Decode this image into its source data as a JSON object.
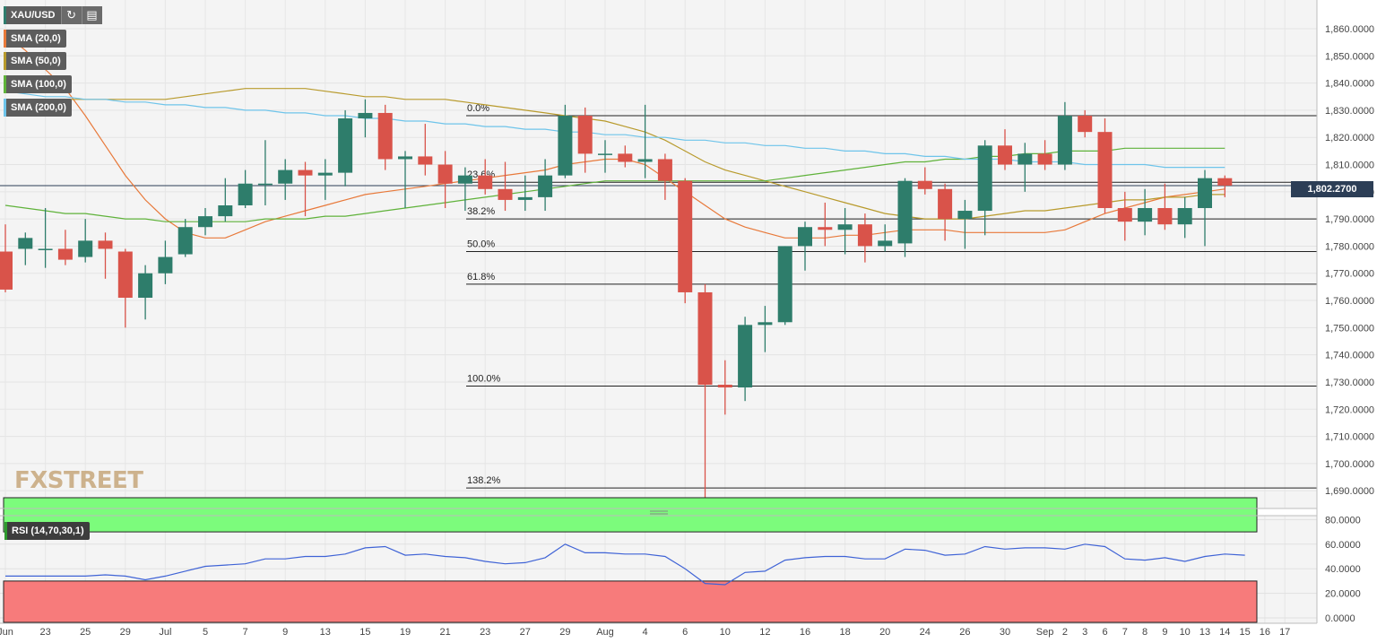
{
  "toolbar": {
    "symbol": "XAU/USD",
    "refresh_icon": "refresh-icon",
    "settings_icon": "chart-settings-icon"
  },
  "indicators": [
    {
      "label": "SMA (20,0)",
      "color": "#e8793a"
    },
    {
      "label": "SMA (50,0)",
      "color": "#b89a2c"
    },
    {
      "label": "SMA (100,0)",
      "color": "#5fb23a"
    },
    {
      "label": "SMA (200,0)",
      "color": "#6ec4ea"
    }
  ],
  "logo": "FXSTREET",
  "rsi_label": "RSI (14,70,30,1)",
  "last_price_label": "1,802.2700",
  "chart_data": {
    "type": "candlestick",
    "title": "XAU/USD",
    "ylim": [
      1687,
      1866
    ],
    "y_ticks": [
      "1,860.0000",
      "1,850.0000",
      "1,840.0000",
      "1,830.0000",
      "1,820.0000",
      "1,810.0000",
      "1,800.0000",
      "1,790.0000",
      "1,780.0000",
      "1,770.0000",
      "1,760.0000",
      "1,750.0000",
      "1,740.0000",
      "1,730.0000",
      "1,720.0000",
      "1,710.0000",
      "1,700.0000",
      "1,690.0000"
    ],
    "y_tick_values": [
      1860,
      1850,
      1840,
      1830,
      1820,
      1810,
      1800,
      1790,
      1780,
      1770,
      1760,
      1750,
      1740,
      1730,
      1720,
      1710,
      1700,
      1690
    ],
    "x_ticks": [
      {
        "label": "Jun",
        "i": 0
      },
      {
        "label": "23",
        "i": 2
      },
      {
        "label": "25",
        "i": 4
      },
      {
        "label": "29",
        "i": 6
      },
      {
        "label": "Jul",
        "i": 8
      },
      {
        "label": "5",
        "i": 10
      },
      {
        "label": "7",
        "i": 12
      },
      {
        "label": "9",
        "i": 14
      },
      {
        "label": "13",
        "i": 16
      },
      {
        "label": "15",
        "i": 18
      },
      {
        "label": "19",
        "i": 20
      },
      {
        "label": "21",
        "i": 22
      },
      {
        "label": "23",
        "i": 24
      },
      {
        "label": "27",
        "i": 26
      },
      {
        "label": "29",
        "i": 28
      },
      {
        "label": "Aug",
        "i": 30
      },
      {
        "label": "4",
        "i": 32
      },
      {
        "label": "6",
        "i": 34
      },
      {
        "label": "10",
        "i": 36
      },
      {
        "label": "12",
        "i": 38
      },
      {
        "label": "16",
        "i": 40
      },
      {
        "label": "18",
        "i": 42
      },
      {
        "label": "20",
        "i": 44
      },
      {
        "label": "24",
        "i": 46
      },
      {
        "label": "26",
        "i": 48
      },
      {
        "label": "30",
        "i": 50
      },
      {
        "label": "Sep",
        "i": 52
      },
      {
        "label": "2",
        "i": 53
      },
      {
        "label": "3",
        "i": 54
      },
      {
        "label": "6",
        "i": 55
      },
      {
        "label": "7",
        "i": 56
      },
      {
        "label": "8",
        "i": 57
      },
      {
        "label": "9",
        "i": 58
      },
      {
        "label": "10",
        "i": 59
      },
      {
        "label": "13",
        "i": 60
      },
      {
        "label": "14",
        "i": 61
      },
      {
        "label": "15",
        "i": 62
      },
      {
        "label": "16",
        "i": 63
      },
      {
        "label": "17",
        "i": 64
      }
    ],
    "candles": [
      {
        "o": 1778,
        "h": 1788,
        "l": 1763,
        "c": 1764
      },
      {
        "o": 1779,
        "h": 1785,
        "l": 1773,
        "c": 1783
      },
      {
        "o": 1779,
        "h": 1794,
        "l": 1772,
        "c": 1779
      },
      {
        "o": 1779,
        "h": 1786,
        "l": 1773,
        "c": 1775
      },
      {
        "o": 1776,
        "h": 1790,
        "l": 1774,
        "c": 1782
      },
      {
        "o": 1782,
        "h": 1785,
        "l": 1768,
        "c": 1779
      },
      {
        "o": 1778,
        "h": 1779,
        "l": 1750,
        "c": 1761
      },
      {
        "o": 1761,
        "h": 1773,
        "l": 1753,
        "c": 1770
      },
      {
        "o": 1770,
        "h": 1782,
        "l": 1766,
        "c": 1776
      },
      {
        "o": 1777,
        "h": 1790,
        "l": 1776,
        "c": 1787
      },
      {
        "o": 1787,
        "h": 1794,
        "l": 1784,
        "c": 1791
      },
      {
        "o": 1791,
        "h": 1805,
        "l": 1789,
        "c": 1795
      },
      {
        "o": 1795,
        "h": 1808,
        "l": 1794,
        "c": 1803
      },
      {
        "o": 1803,
        "h": 1819,
        "l": 1795,
        "c": 1803
      },
      {
        "o": 1803,
        "h": 1812,
        "l": 1797,
        "c": 1808
      },
      {
        "o": 1808,
        "h": 1811,
        "l": 1791,
        "c": 1806
      },
      {
        "o": 1806,
        "h": 1812,
        "l": 1797,
        "c": 1807
      },
      {
        "o": 1807,
        "h": 1830,
        "l": 1802,
        "c": 1827
      },
      {
        "o": 1827,
        "h": 1834,
        "l": 1820,
        "c": 1829
      },
      {
        "o": 1829,
        "h": 1832,
        "l": 1808,
        "c": 1812
      },
      {
        "o": 1812,
        "h": 1815,
        "l": 1794,
        "c": 1813
      },
      {
        "o": 1813,
        "h": 1825,
        "l": 1806,
        "c": 1810
      },
      {
        "o": 1810,
        "h": 1815,
        "l": 1794,
        "c": 1803
      },
      {
        "o": 1803,
        "h": 1809,
        "l": 1793,
        "c": 1806
      },
      {
        "o": 1806,
        "h": 1812,
        "l": 1799,
        "c": 1801
      },
      {
        "o": 1801,
        "h": 1811,
        "l": 1793,
        "c": 1797
      },
      {
        "o": 1797,
        "h": 1806,
        "l": 1793,
        "c": 1798
      },
      {
        "o": 1798,
        "h": 1812,
        "l": 1793,
        "c": 1806
      },
      {
        "o": 1806,
        "h": 1832,
        "l": 1805,
        "c": 1828
      },
      {
        "o": 1828,
        "h": 1831,
        "l": 1807,
        "c": 1814
      },
      {
        "o": 1814,
        "h": 1819,
        "l": 1807,
        "c": 1814
      },
      {
        "o": 1814,
        "h": 1817,
        "l": 1809,
        "c": 1811
      },
      {
        "o": 1811,
        "h": 1832,
        "l": 1805,
        "c": 1812
      },
      {
        "o": 1812,
        "h": 1814,
        "l": 1797,
        "c": 1804
      },
      {
        "o": 1804,
        "h": 1805,
        "l": 1759,
        "c": 1763
      },
      {
        "o": 1763,
        "h": 1766,
        "l": 1687,
        "c": 1729
      },
      {
        "o": 1729,
        "h": 1738,
        "l": 1718,
        "c": 1728
      },
      {
        "o": 1728,
        "h": 1754,
        "l": 1723,
        "c": 1751
      },
      {
        "o": 1751,
        "h": 1758,
        "l": 1741,
        "c": 1752
      },
      {
        "o": 1752,
        "h": 1780,
        "l": 1751,
        "c": 1780
      },
      {
        "o": 1780,
        "h": 1789,
        "l": 1771,
        "c": 1787
      },
      {
        "o": 1787,
        "h": 1796,
        "l": 1780,
        "c": 1786
      },
      {
        "o": 1786,
        "h": 1794,
        "l": 1777,
        "c": 1788
      },
      {
        "o": 1788,
        "h": 1792,
        "l": 1774,
        "c": 1780
      },
      {
        "o": 1780,
        "h": 1788,
        "l": 1778,
        "c": 1782
      },
      {
        "o": 1781,
        "h": 1805,
        "l": 1776,
        "c": 1804
      },
      {
        "o": 1804,
        "h": 1809,
        "l": 1799,
        "c": 1801
      },
      {
        "o": 1801,
        "h": 1803,
        "l": 1782,
        "c": 1790
      },
      {
        "o": 1790,
        "h": 1797,
        "l": 1779,
        "c": 1793
      },
      {
        "o": 1793,
        "h": 1819,
        "l": 1784,
        "c": 1817
      },
      {
        "o": 1817,
        "h": 1823,
        "l": 1808,
        "c": 1810
      },
      {
        "o": 1810,
        "h": 1818,
        "l": 1800,
        "c": 1814
      },
      {
        "o": 1814,
        "h": 1819,
        "l": 1808,
        "c": 1810
      },
      {
        "o": 1810,
        "h": 1833,
        "l": 1808,
        "c": 1828
      },
      {
        "o": 1828,
        "h": 1830,
        "l": 1820,
        "c": 1822
      },
      {
        "o": 1822,
        "h": 1827,
        "l": 1792,
        "c": 1794
      },
      {
        "o": 1794,
        "h": 1800,
        "l": 1782,
        "c": 1789
      },
      {
        "o": 1789,
        "h": 1801,
        "l": 1784,
        "c": 1794
      },
      {
        "o": 1794,
        "h": 1803,
        "l": 1786,
        "c": 1788
      },
      {
        "o": 1788,
        "h": 1798,
        "l": 1783,
        "c": 1794
      },
      {
        "o": 1794,
        "h": 1808,
        "l": 1780,
        "c": 1805
      },
      {
        "o": 1805,
        "h": 1806,
        "l": 1798,
        "c": 1802.27
      }
    ],
    "sma": [
      {
        "label": "SMA (20,0)",
        "color": "#e8793a",
        "values": [
          1858,
          1852,
          1845,
          1838,
          1828,
          1817,
          1806,
          1797,
          1790,
          1785,
          1783,
          1783,
          1786,
          1789,
          1791,
          1793,
          1795,
          1797,
          1799,
          1800,
          1801,
          1802,
          1803,
          1804,
          1805,
          1806,
          1807,
          1808,
          1810,
          1811,
          1812,
          1812,
          1810,
          1805,
          1800,
          1795,
          1790,
          1787,
          1785,
          1783,
          1783,
          1783,
          1784,
          1784,
          1785,
          1786,
          1786,
          1786,
          1785,
          1785,
          1785,
          1785,
          1785,
          1786,
          1789,
          1792,
          1794,
          1796,
          1798,
          1799,
          1800,
          1801
        ]
      },
      {
        "label": "SMA (50,0)",
        "color": "#b89a2c",
        "values": [
          1834,
          1834,
          1834,
          1834,
          1834,
          1834,
          1834,
          1834,
          1834,
          1835,
          1836,
          1837,
          1838,
          1838,
          1838,
          1838,
          1837,
          1836,
          1835,
          1835,
          1834,
          1834,
          1834,
          1833,
          1832,
          1831,
          1830,
          1829,
          1828,
          1827,
          1826,
          1824,
          1822,
          1819,
          1815,
          1811,
          1808,
          1806,
          1804,
          1802,
          1800,
          1798,
          1796,
          1794,
          1792,
          1791,
          1790,
          1790,
          1790,
          1791,
          1792,
          1793,
          1793,
          1794,
          1795,
          1796,
          1797,
          1797,
          1798,
          1798,
          1799,
          1799
        ]
      },
      {
        "label": "SMA (100,0)",
        "color": "#5fb23a",
        "values": [
          1795,
          1794,
          1793,
          1792,
          1792,
          1791,
          1790,
          1790,
          1789,
          1789,
          1789,
          1789,
          1789,
          1790,
          1790,
          1790,
          1791,
          1791,
          1792,
          1793,
          1794,
          1795,
          1796,
          1797,
          1798,
          1799,
          1800,
          1801,
          1802,
          1803,
          1804,
          1804,
          1804,
          1804,
          1804,
          1804,
          1804,
          1804,
          1804,
          1805,
          1806,
          1807,
          1808,
          1809,
          1810,
          1811,
          1811,
          1812,
          1812,
          1813,
          1813,
          1814,
          1814,
          1815,
          1815,
          1815,
          1816,
          1816,
          1816,
          1816,
          1816,
          1816
        ]
      },
      {
        "label": "SMA (200,0)",
        "color": "#6ec4ea",
        "values": [
          1837,
          1836,
          1835,
          1835,
          1834,
          1834,
          1833,
          1833,
          1832,
          1832,
          1831,
          1831,
          1830,
          1830,
          1829,
          1829,
          1828,
          1828,
          1827,
          1827,
          1826,
          1826,
          1825,
          1825,
          1824,
          1824,
          1823,
          1823,
          1822,
          1822,
          1821,
          1821,
          1820,
          1820,
          1819,
          1819,
          1818,
          1818,
          1817,
          1817,
          1816,
          1816,
          1815,
          1815,
          1814,
          1814,
          1813,
          1813,
          1812,
          1812,
          1812,
          1811,
          1811,
          1811,
          1810,
          1810,
          1810,
          1810,
          1809,
          1809,
          1809,
          1809
        ]
      }
    ],
    "fib_levels": [
      {
        "label": "0.0%",
        "value": 1828
      },
      {
        "label": "23.6%",
        "value": 1803.5
      },
      {
        "label": "38.2%",
        "value": 1790
      },
      {
        "label": "50.0%",
        "value": 1778
      },
      {
        "label": "61.8%",
        "value": 1766
      },
      {
        "label": "100.0%",
        "value": 1728.5
      },
      {
        "label": "138.2%",
        "value": 1691
      }
    ],
    "last_price": 1802.27,
    "rsi": {
      "label": "RSI (14,70,30,1)",
      "ylim": [
        0,
        100
      ],
      "overbought": 70,
      "oversold": 30,
      "y_ticks": [
        "80.0000",
        "60.0000",
        "40.0000",
        "20.0000",
        "0.0000"
      ],
      "y_tick_values": [
        80,
        60,
        40,
        20,
        0
      ],
      "color": "#3f63d6",
      "values": [
        34,
        34,
        34,
        34,
        34,
        35,
        34,
        31,
        34,
        38,
        42,
        43,
        44,
        48,
        48,
        50,
        50,
        52,
        57,
        58,
        51,
        52,
        50,
        49,
        46,
        44,
        45,
        49,
        60,
        53,
        53,
        52,
        52,
        50,
        40,
        28,
        27,
        37,
        38,
        47,
        49,
        50,
        50,
        48,
        48,
        56,
        55,
        51,
        52,
        58,
        56,
        57,
        57,
        56,
        60,
        58,
        48,
        47,
        49,
        46,
        50,
        52,
        51
      ]
    }
  }
}
